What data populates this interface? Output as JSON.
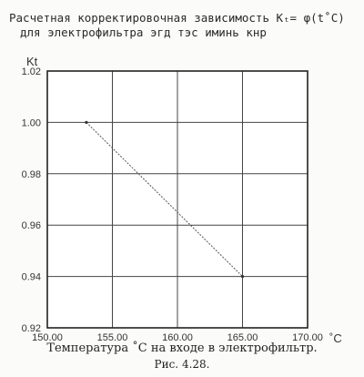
{
  "chart_data": {
    "type": "line",
    "title_lines": [
      "Расчетная корректировочная зависимость Kₜ= φ(t˚C)",
      "для электрофильтра эгд тэс иминь кнр"
    ],
    "xlabel": "Температура ˚C на входе в электрофильтр.",
    "ylabel": "Kt",
    "x_unit": "˚C",
    "xlim": [
      150,
      170
    ],
    "ylim": [
      0.92,
      1.02
    ],
    "x_ticks": [
      150,
      155,
      160,
      165,
      170
    ],
    "y_ticks": [
      0.92,
      0.94,
      0.96,
      0.98,
      1.0,
      1.02
    ],
    "x_tick_labels": [
      "150.00",
      "155.00",
      "160.00",
      "165.00",
      "170.00"
    ],
    "y_tick_labels": [
      "0.92",
      "0.94",
      "0.96",
      "0.98",
      "1.00",
      "1.02"
    ],
    "grid": true,
    "series": [
      {
        "x": [
          153,
          165
        ],
        "y": [
          1.0,
          0.94
        ]
      }
    ],
    "figure_caption": "Рис. 4.28."
  }
}
